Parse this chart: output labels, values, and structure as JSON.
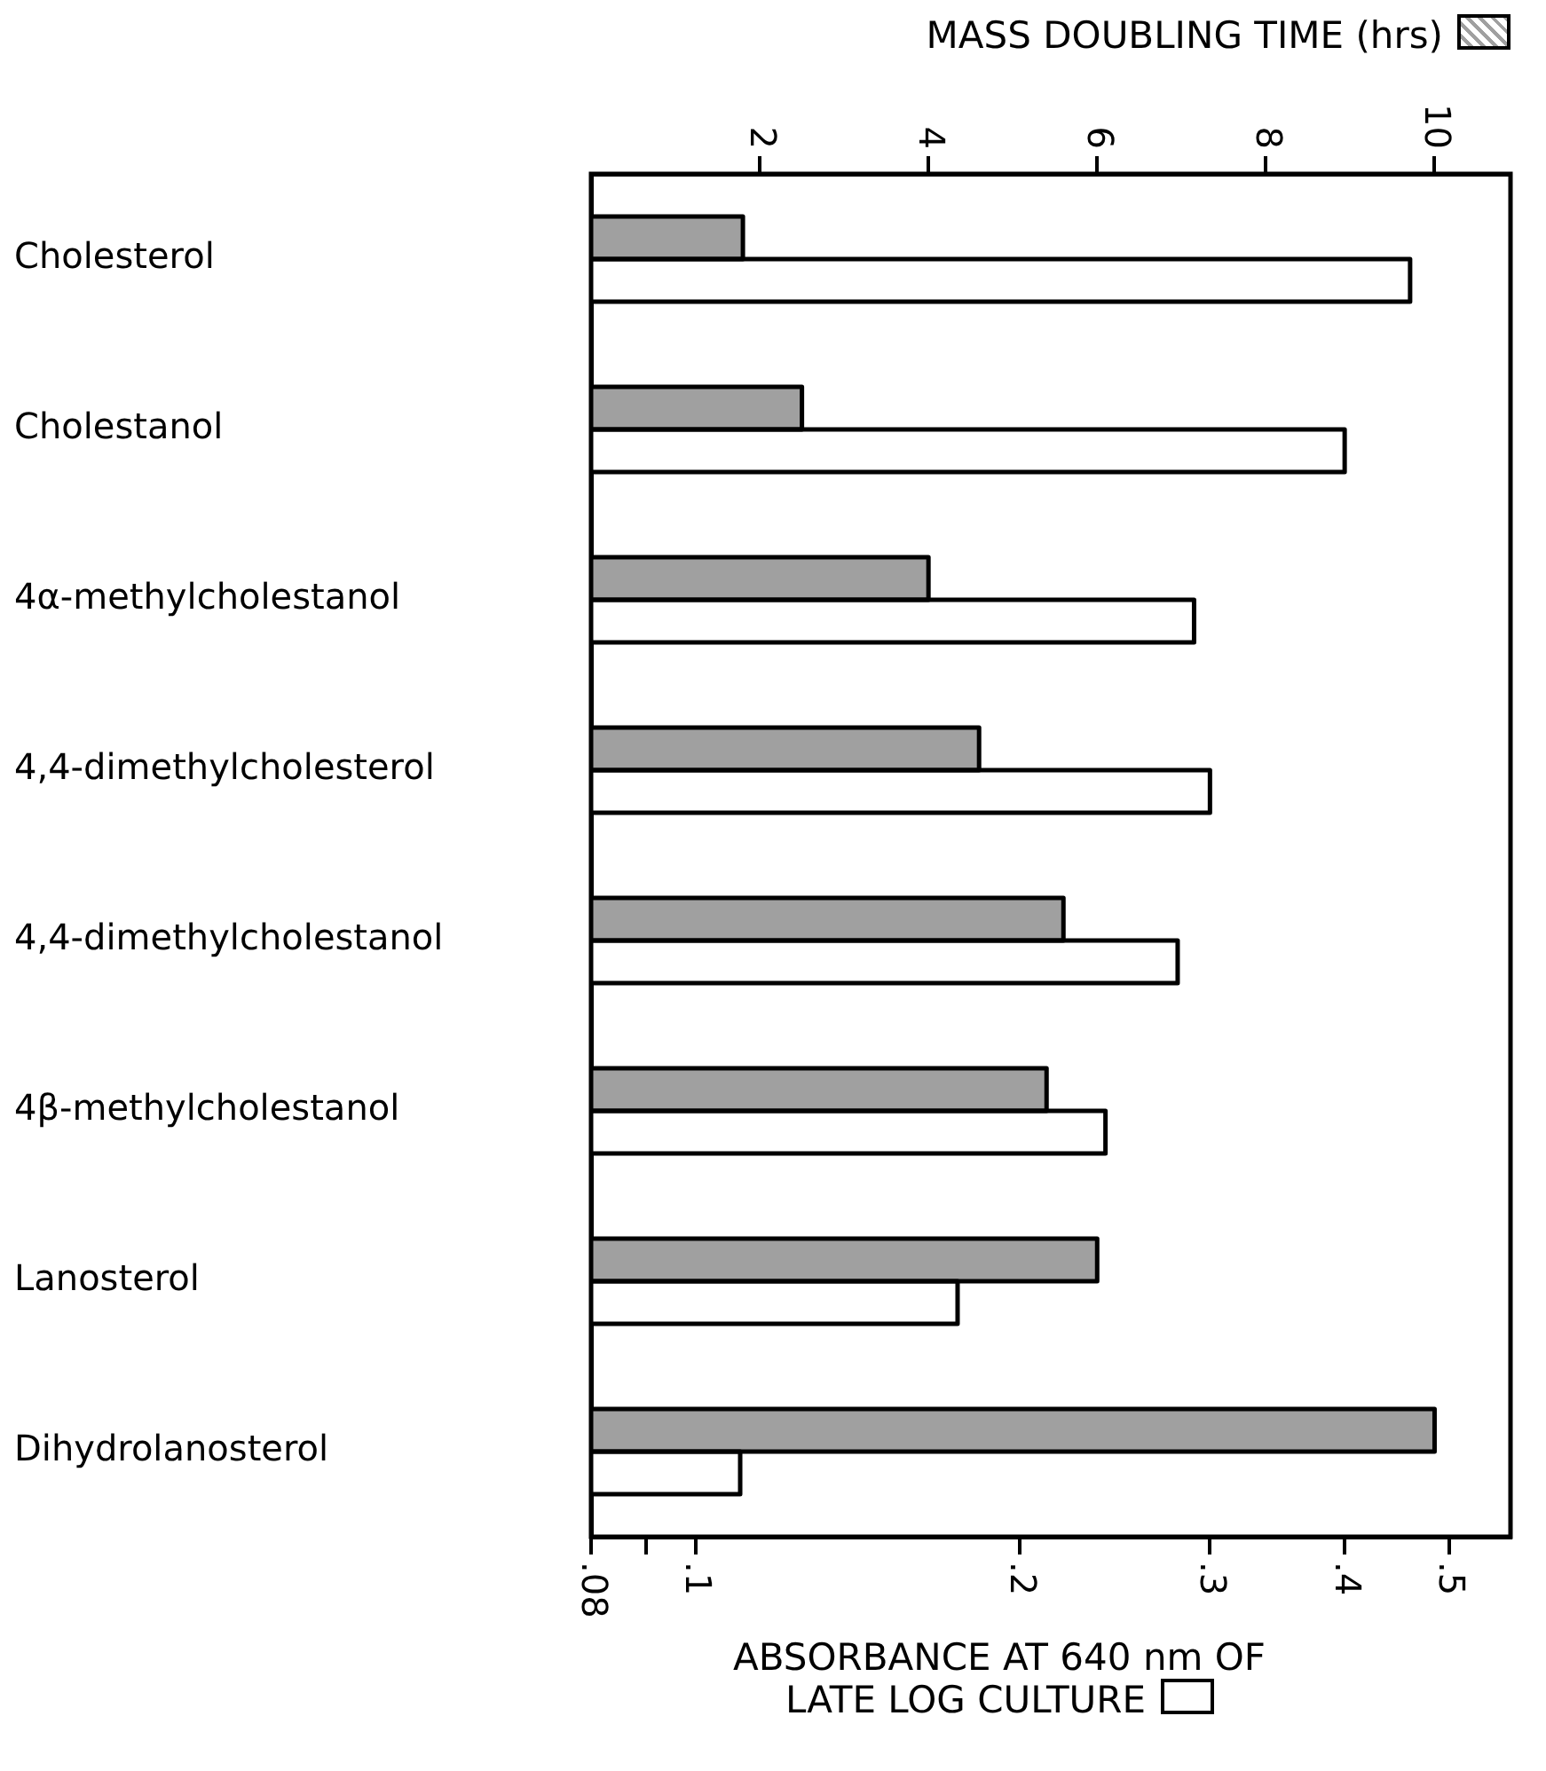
{
  "chart_data": {
    "type": "bar",
    "orientation": "horizontal",
    "xlabel": "ABSORBANCE AT 640 nm OF LATE LOG CULTURE",
    "x2label": "MASS DOUBLING TIME (hrs)",
    "categories": [
      "Cholesterol",
      "Cholestanol",
      "4α-methylcholestanol",
      "4,4-dimethylcholesterol",
      "4,4-dimethylcholestanol",
      "4β-methylcholestanol",
      "Lanosterol",
      "Dihydrolanosterol"
    ],
    "series": [
      {
        "color": "#a0a0a0",
        "axis": "x2",
        "values": [
          1.8,
          2.5,
          4.0,
          4.6,
          5.6,
          5.4,
          6.0,
          10.0
        ]
      },
      {
        "color": "#ffffff",
        "values": [
          0.46,
          0.4,
          0.29,
          0.3,
          0.28,
          0.24,
          0.175,
          0.11
        ]
      }
    ],
    "log": "x",
    "xlim": [
      0.08,
      0.57
    ],
    "xticks": [
      {
        "value": 0.08,
        "label": ".08"
      },
      {
        "value": 0.09,
        "label": null
      },
      {
        "value": 0.1,
        "label": ".1"
      },
      {
        "value": 0.2,
        "label": ".2"
      },
      {
        "value": 0.3,
        "label": ".3"
      },
      {
        "value": 0.4,
        "label": ".4"
      },
      {
        "value": 0.5,
        "label": ".5"
      }
    ],
    "x2lim": [
      0,
      10.9
    ],
    "x2ticks": [
      2,
      4,
      6,
      8,
      10
    ],
    "grid": false,
    "legend": false
  }
}
